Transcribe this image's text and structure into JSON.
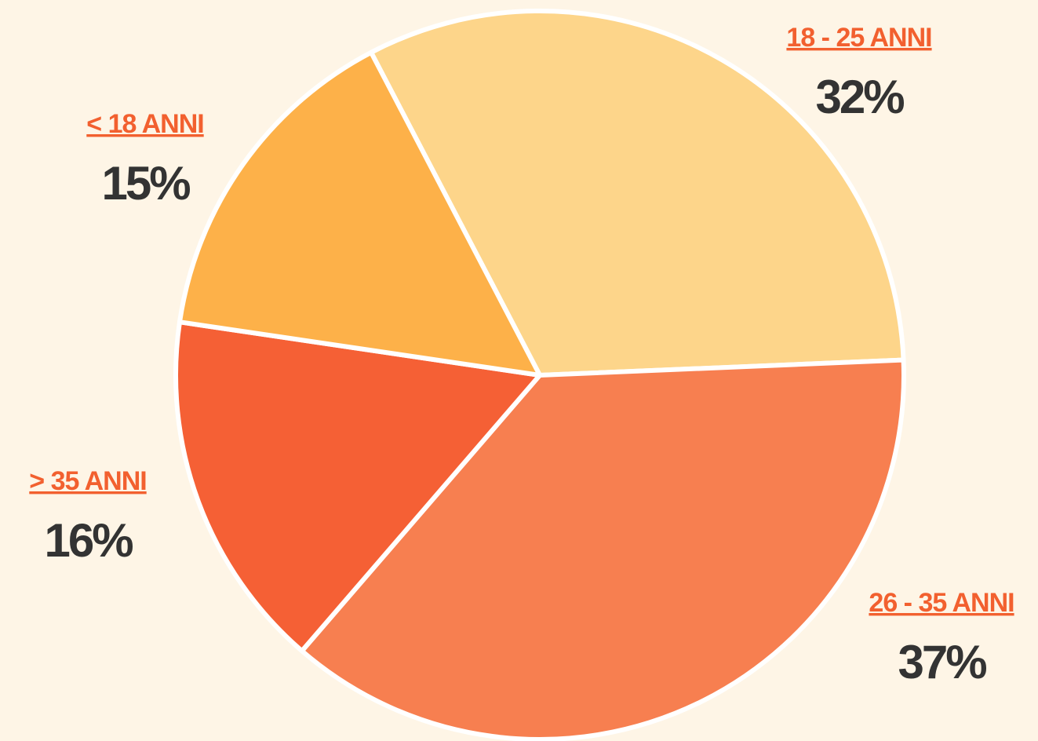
{
  "chart_data": {
    "type": "pie",
    "categories": [
      "18 - 25 ANNI",
      "26 - 35 ANNI",
      "> 35 ANNI",
      "< 18 ANNI"
    ],
    "values": [
      32,
      37,
      16,
      15
    ],
    "value_labels": [
      "32%",
      "37%",
      "16%",
      "15%"
    ],
    "colors": [
      "#fdd58a",
      "#f77f50",
      "#f56035",
      "#fdb149"
    ]
  }
}
